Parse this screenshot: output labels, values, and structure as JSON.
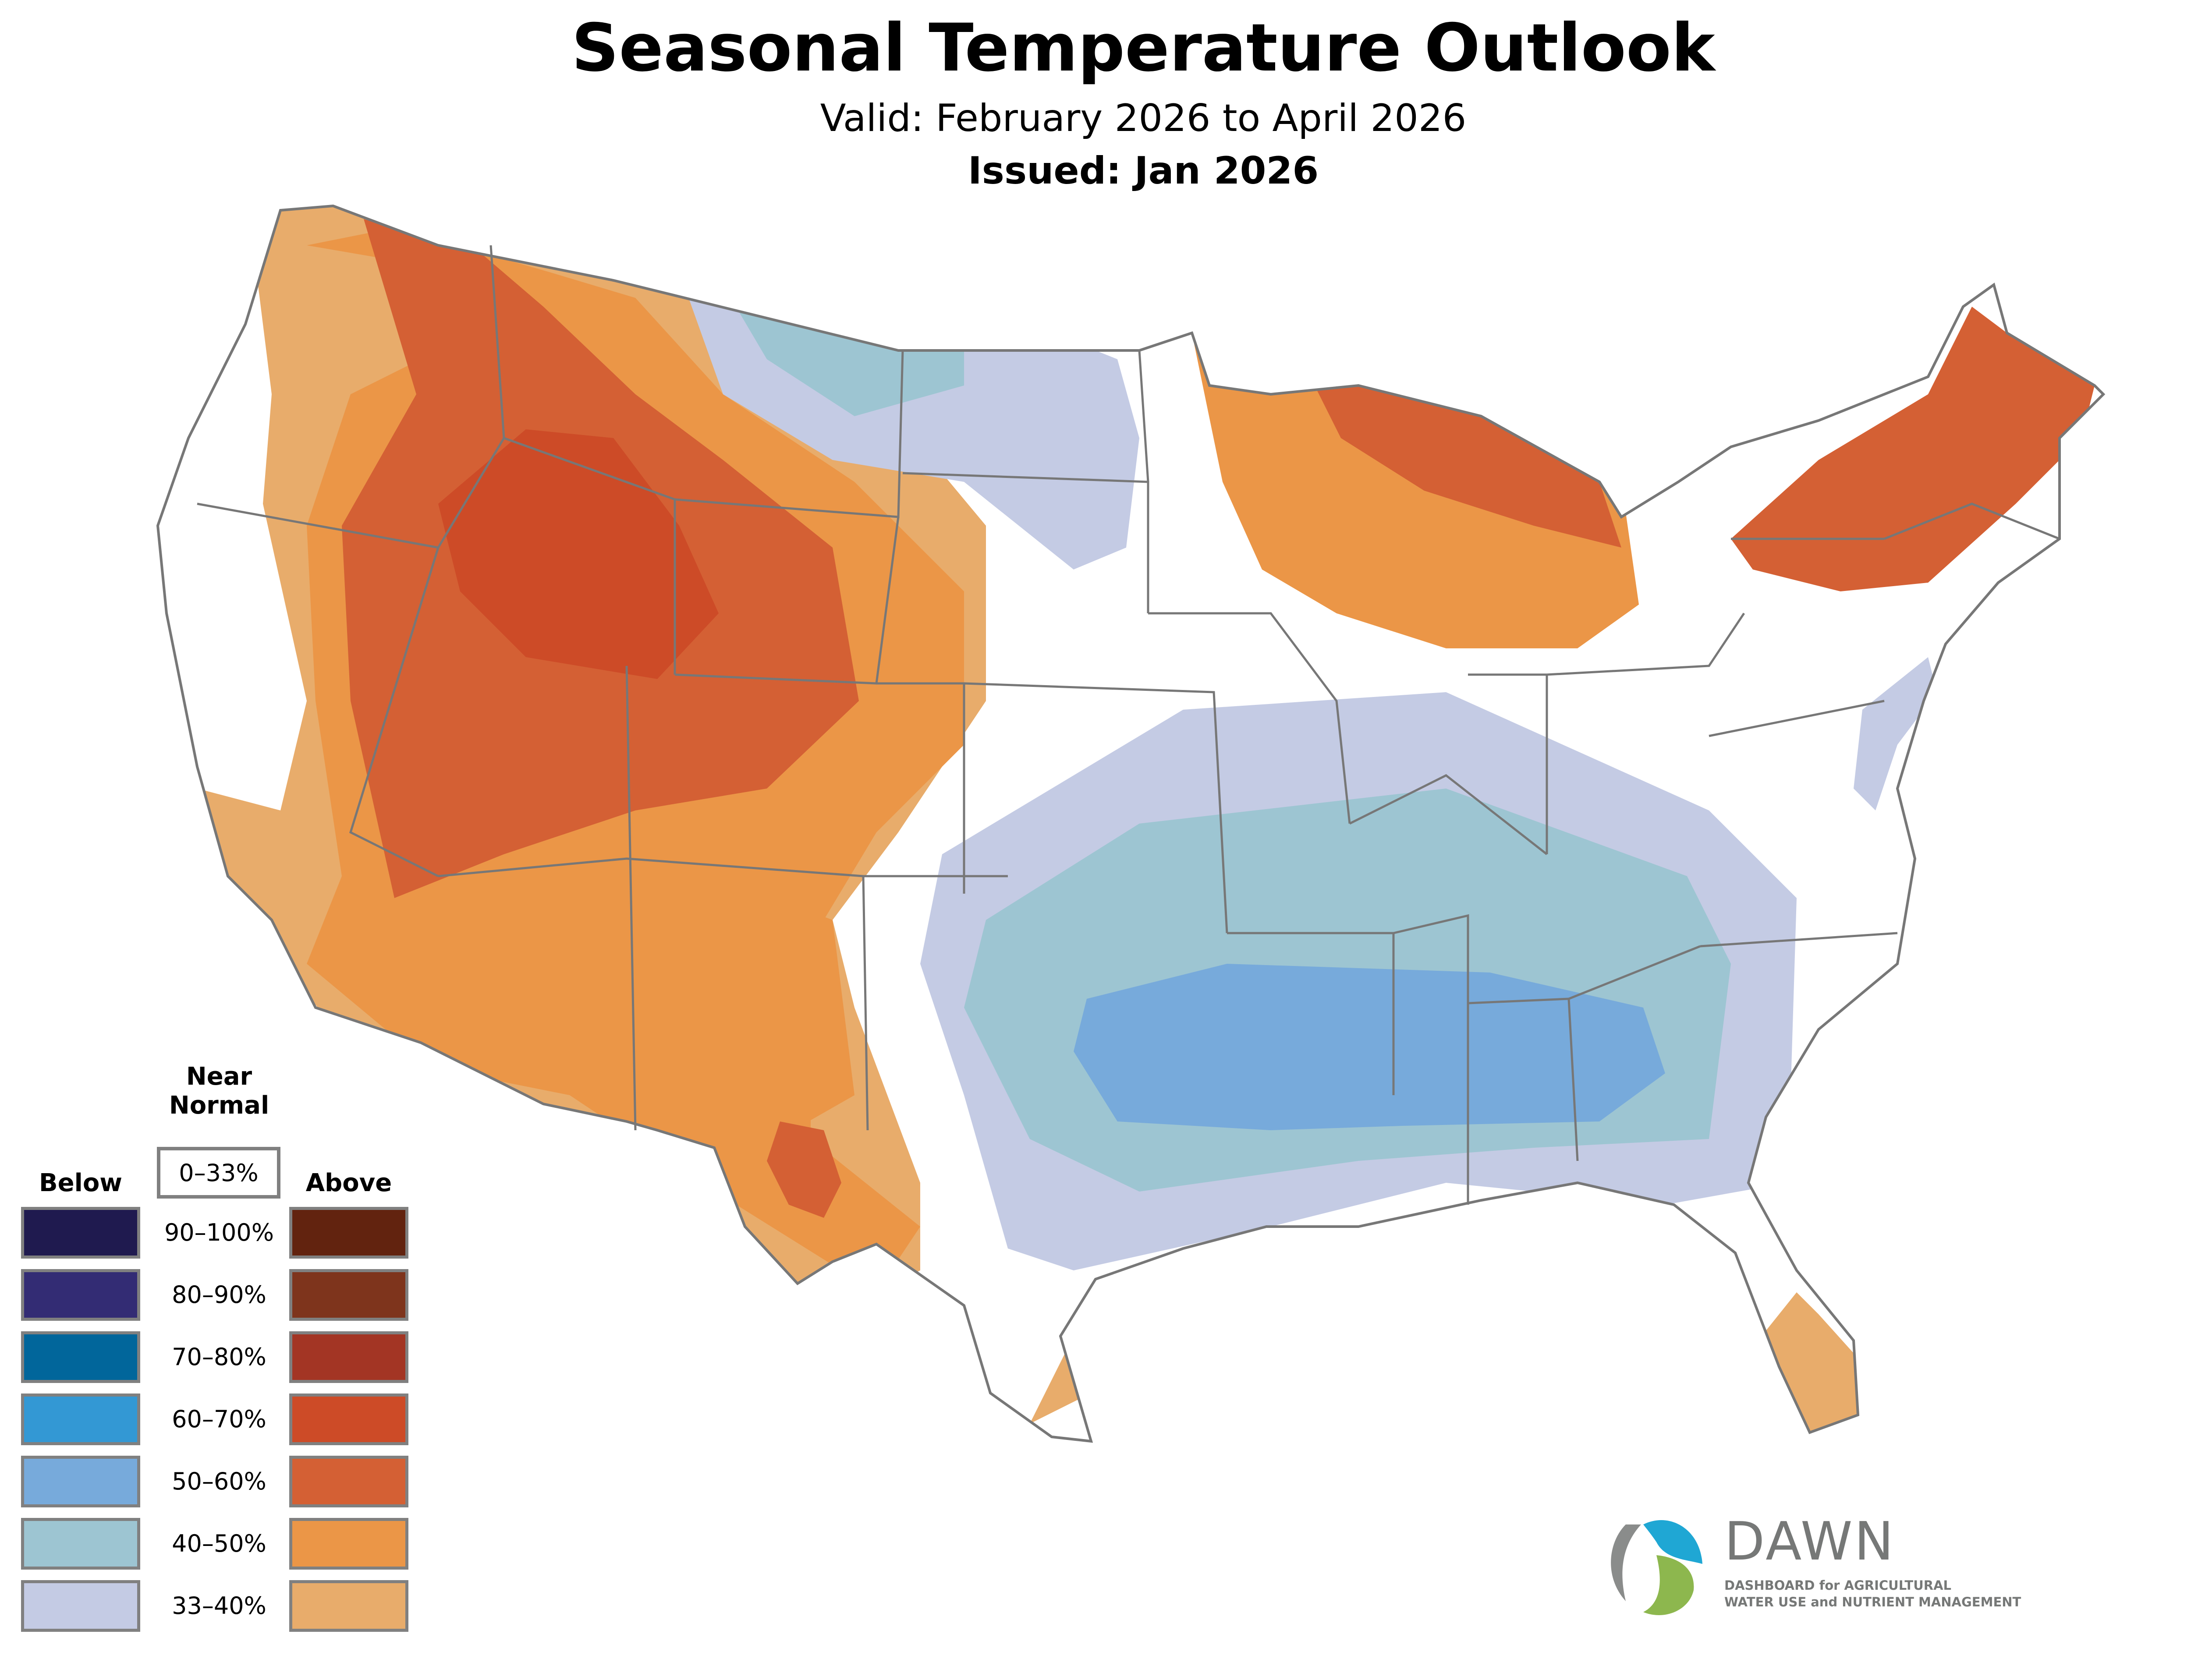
{
  "header": {
    "title": "Seasonal Temperature Outlook",
    "valid": "Valid: February 2026 to April 2026",
    "issued": "Issued: Jan 2026"
  },
  "legend": {
    "near_normal_label": "Near\nNormal",
    "near_normal_range": "0–33%",
    "below_label": "Below",
    "above_label": "Above",
    "rows": [
      {
        "range": "90–100%",
        "below_color": "#1f1a4f",
        "above_color": "#62230f"
      },
      {
        "range": "80–90%",
        "below_color": "#332c74",
        "above_color": "#7e341c"
      },
      {
        "range": "70–80%",
        "below_color": "#01669b",
        "above_color": "#a33524"
      },
      {
        "range": "60–70%",
        "below_color": "#3398d4",
        "above_color": "#cd4b27"
      },
      {
        "range": "50–60%",
        "below_color": "#77aadb",
        "above_color": "#d46034"
      },
      {
        "range": "40–50%",
        "below_color": "#9dc5d2",
        "above_color": "#eb9647"
      },
      {
        "range": "33–40%",
        "below_color": "#c4cbe4",
        "above_color": "#e8ac6b"
      }
    ]
  },
  "map": {
    "border_color": "#777777",
    "regions": [
      {
        "name": "pacific-northwest-above",
        "category": "Above",
        "range": "33–40%"
      },
      {
        "name": "west-above",
        "category": "Above",
        "range": "40–50%"
      },
      {
        "name": "great-basin-above",
        "category": "Above",
        "range": "50–60%"
      },
      {
        "name": "idaho-montana-core-above",
        "category": "Above",
        "range": "60–70%"
      },
      {
        "name": "southwest-above",
        "category": "Above",
        "range": "40–50%"
      },
      {
        "name": "west-texas-core-above",
        "category": "Above",
        "range": "50–60%"
      },
      {
        "name": "great-lakes-above",
        "category": "Above",
        "range": "40–50%"
      },
      {
        "name": "upper-michigan-above",
        "category": "Above",
        "range": "50–60%"
      },
      {
        "name": "new-england-above",
        "category": "Above",
        "range": "50–60%"
      },
      {
        "name": "gulf-coast-above",
        "category": "Above",
        "range": "33–40%"
      },
      {
        "name": "florida-above",
        "category": "Above",
        "range": "33–40%"
      },
      {
        "name": "northern-plains-below",
        "category": "Below",
        "range": "33–40%"
      },
      {
        "name": "montana-core-below",
        "category": "Below",
        "range": "40–50%"
      },
      {
        "name": "south-central-below",
        "category": "Below",
        "range": "33–40%"
      },
      {
        "name": "mid-south-below",
        "category": "Below",
        "range": "40–50%"
      },
      {
        "name": "deep-south-core-below",
        "category": "Below",
        "range": "50–60%"
      },
      {
        "name": "mid-atlantic-below",
        "category": "Below",
        "range": "33–40%"
      }
    ]
  },
  "logo": {
    "name": "DAWN",
    "tagline_line1": "DASHBOARD for AGRICULTURAL",
    "tagline_line2": "WATER USE and NUTRIENT MANAGEMENT",
    "colors": {
      "blue": "#1fa7d4",
      "green": "#8db74e",
      "gray": "#767877"
    }
  }
}
